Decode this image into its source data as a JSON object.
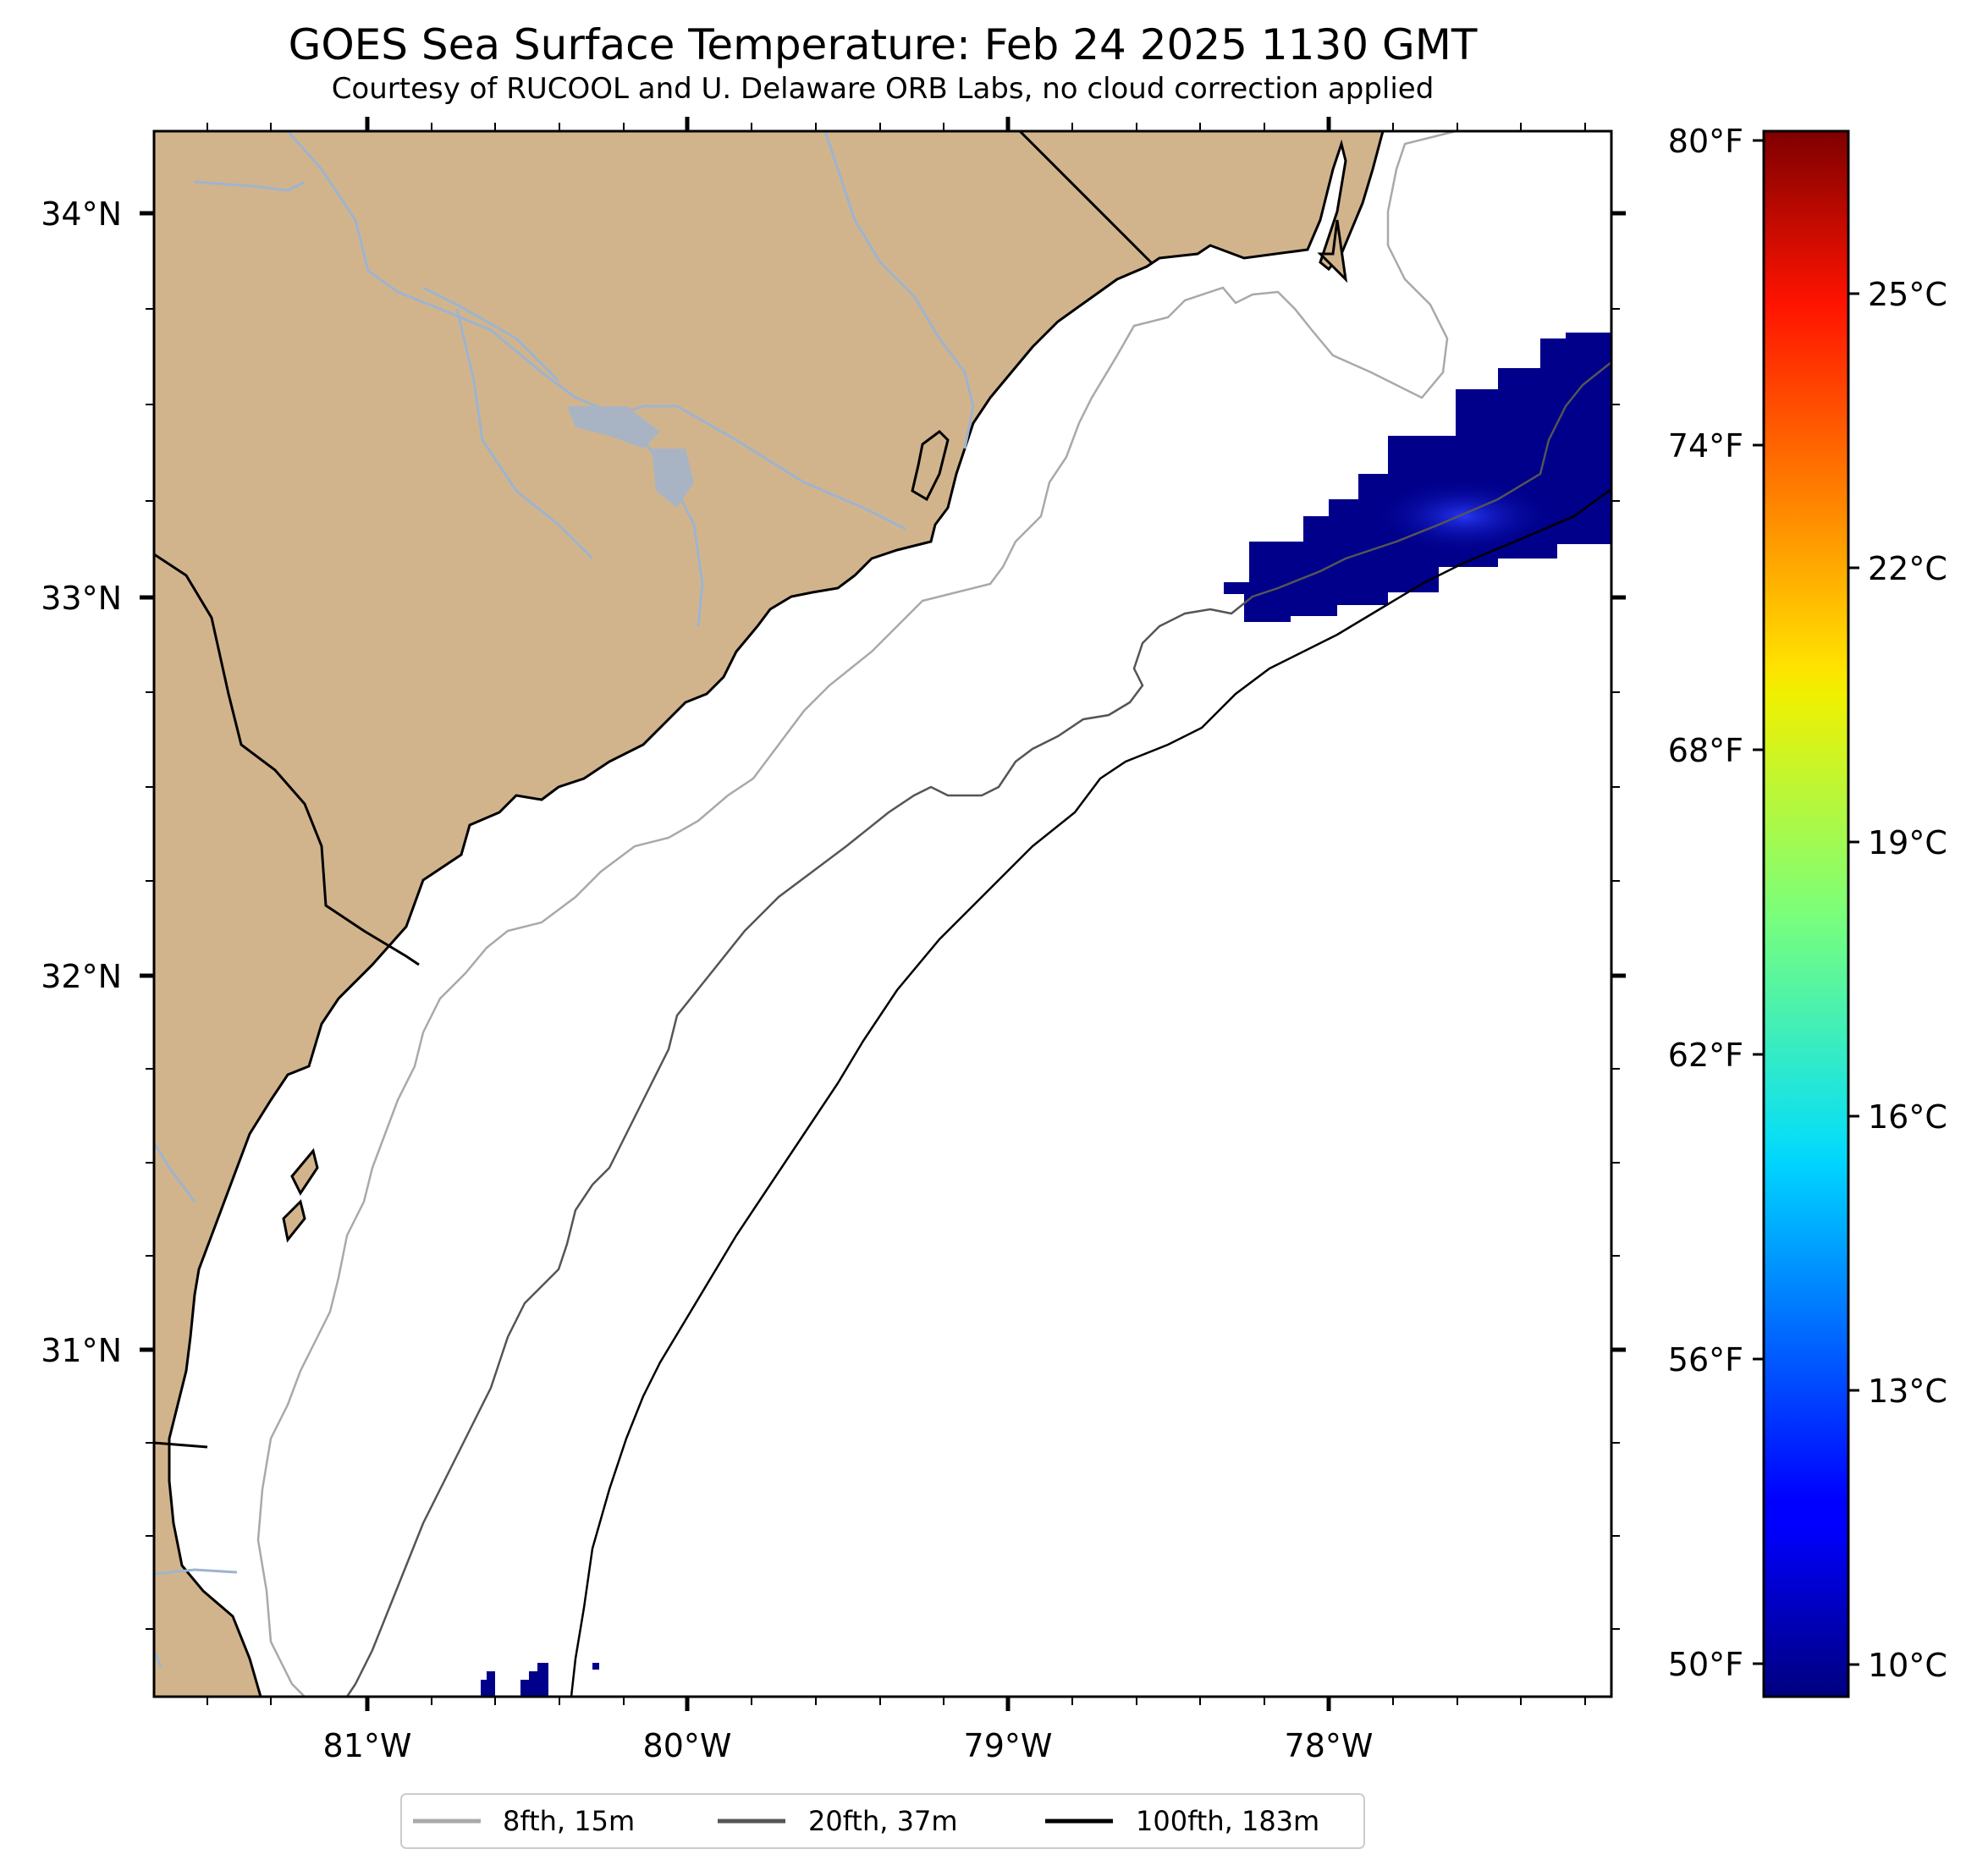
{
  "title": "GOES Sea Surface Temperature: Feb 24 2025 1130 GMT",
  "subtitle": "Courtesy of RUCOOL and U. Delaware ORB Labs, no cloud correction applied",
  "map": {
    "lon_range": [
      -81.67,
      -77.12
    ],
    "lat_range": [
      30.09,
      34.22
    ],
    "lon_ticks": [
      "81°W",
      "80°W",
      "79°W",
      "78°W"
    ],
    "lat_ticks": [
      "34°N",
      "33°N",
      "32°N",
      "31°N"
    ],
    "land_color": "#d2b48c",
    "water_color": "#ffffff",
    "river_color": "#9db4cf"
  },
  "colorbar": {
    "colormap": "jet",
    "celsius_range": [
      9.5,
      26.7
    ],
    "fahrenheit_ticks": [
      "80°F",
      "74°F",
      "68°F",
      "62°F",
      "56°F",
      "50°F"
    ],
    "celsius_ticks": [
      "25°C",
      "22°C",
      "19°C",
      "16°C",
      "13°C",
      "10°C"
    ]
  },
  "legend": {
    "placement": "bottom-center",
    "items": [
      {
        "label": "8fth, 15m",
        "color": "#a9a9a9"
      },
      {
        "label": "20fth, 37m",
        "color": "#555555"
      },
      {
        "label": "100fth, 183m",
        "color": "#000000"
      }
    ]
  },
  "sst_patches": [
    {
      "region": "offshore northeast",
      "temp_c": 10
    },
    {
      "region": "southwest corner",
      "temp_c": 10
    }
  ]
}
